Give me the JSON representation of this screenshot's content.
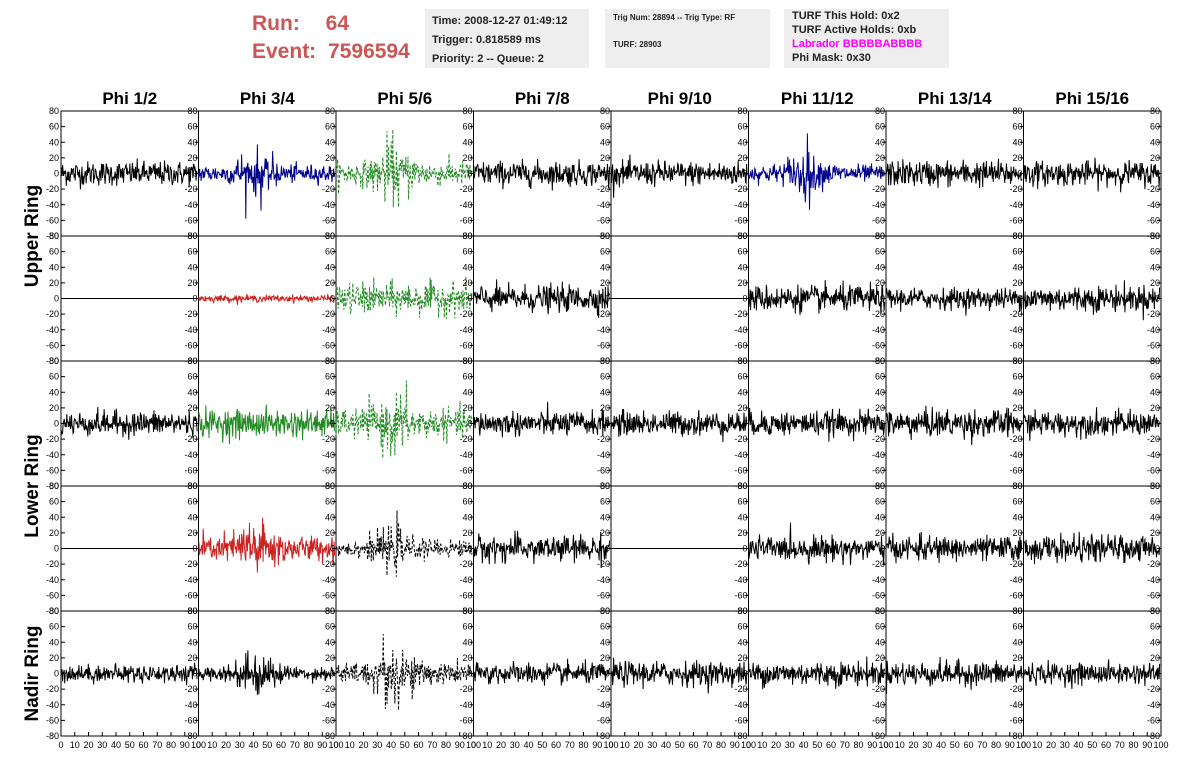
{
  "run_info": {
    "run_label": "Run:",
    "run_value": "64",
    "event_label": "Event:",
    "event_value": "7596594",
    "color": "#cc5555"
  },
  "time_box": {
    "time": "Time: 2008-12-27 01:49:12",
    "trigger": "Trigger: 0.818589 ms",
    "priority": "Priority: 2 -- Queue: 2"
  },
  "trig_box": {
    "trig": "Trig Num: 28894 -- Trig Type: RF",
    "turf": "TURF: 28903"
  },
  "turf_box": {
    "this_hold": "TURF This Hold: 0x2",
    "active_holds": "TURF Active Holds: 0xb",
    "labrador": "Labrador BBBBBABBBB",
    "phi_mask": "Phi Mask: 0x30"
  },
  "chart_data": {
    "type": "line",
    "columns": [
      "Phi 1/2",
      "Phi 3/4",
      "Phi 5/6",
      "Phi 7/8",
      "Phi 9/10",
      "Phi 11/12",
      "Phi 13/14",
      "Phi 15/16"
    ],
    "rings": [
      {
        "label": "Upper Ring",
        "rows": [
          0,
          1
        ]
      },
      {
        "label": "Lower Ring",
        "rows": [
          2,
          3
        ]
      },
      {
        "label": "Nadir Ring",
        "rows": [
          4
        ]
      }
    ],
    "ylim": [
      -80,
      80
    ],
    "xlim": [
      0,
      100
    ],
    "y_ticks": [
      -80,
      -60,
      -40,
      -20,
      0,
      20,
      40,
      60,
      80
    ],
    "y_tick_labels": [
      "-80",
      "-60",
      "-40",
      "-20",
      "0",
      "20",
      "40",
      "60",
      "80"
    ],
    "x_ticks": [
      0,
      10,
      20,
      30,
      40,
      50,
      60,
      70,
      80,
      90,
      100
    ],
    "x_tick_labels": [
      "0",
      "10",
      "20",
      "30",
      "40",
      "50",
      "60",
      "70",
      "80",
      "90",
      "100"
    ],
    "panels": [
      [
        {
          "color": "#000000",
          "style": "solid",
          "amp": 14,
          "burst": 0
        },
        {
          "color": "#00008b",
          "style": "solid",
          "amp": 10,
          "burst": 30
        },
        {
          "color": "#228b22",
          "style": "dashed",
          "amp": 14,
          "burst": 32
        },
        {
          "color": "#000000",
          "style": "solid",
          "amp": 14,
          "burst": 0
        },
        {
          "color": "#000000",
          "style": "solid",
          "amp": 14,
          "burst": 0
        },
        {
          "color": "#00008b",
          "style": "solid",
          "amp": 10,
          "burst": 30
        },
        {
          "color": "#000000",
          "style": "solid",
          "amp": 15,
          "burst": 0
        },
        {
          "color": "#000000",
          "style": "solid",
          "amp": 14,
          "burst": 0
        }
      ],
      [
        {
          "color": "#000000",
          "style": "flat",
          "amp": 0,
          "burst": 0
        },
        {
          "color": "#cc2222",
          "style": "solid",
          "amp": 4,
          "burst": 0
        },
        {
          "color": "#228b22",
          "style": "dashed",
          "amp": 18,
          "burst": 0
        },
        {
          "color": "#000000",
          "style": "solid",
          "amp": 15,
          "burst": 0
        },
        {
          "color": "#000000",
          "style": "flat",
          "amp": 0,
          "burst": 0
        },
        {
          "color": "#000000",
          "style": "solid",
          "amp": 15,
          "burst": 0
        },
        {
          "color": "#000000",
          "style": "solid",
          "amp": 12,
          "burst": 0
        },
        {
          "color": "#000000",
          "style": "solid",
          "amp": 15,
          "burst": 0
        }
      ],
      [
        {
          "color": "#000000",
          "style": "solid",
          "amp": 14,
          "burst": 0
        },
        {
          "color": "#228b22",
          "style": "solid",
          "amp": 16,
          "burst": 0
        },
        {
          "color": "#228b22",
          "style": "dashed",
          "amp": 16,
          "burst": 30
        },
        {
          "color": "#000000",
          "style": "solid",
          "amp": 14,
          "burst": 0
        },
        {
          "color": "#000000",
          "style": "solid",
          "amp": 14,
          "burst": 0
        },
        {
          "color": "#000000",
          "style": "solid",
          "amp": 14,
          "burst": 0
        },
        {
          "color": "#000000",
          "style": "solid",
          "amp": 16,
          "burst": 0
        },
        {
          "color": "#000000",
          "style": "solid",
          "amp": 14,
          "burst": 0
        }
      ],
      [
        {
          "color": "#000000",
          "style": "flat",
          "amp": 0,
          "burst": 0
        },
        {
          "color": "#cc2222",
          "style": "solid",
          "amp": 14,
          "burst": 38
        },
        {
          "color": "#000000",
          "style": "dashed",
          "amp": 10,
          "burst": 22
        },
        {
          "color": "#000000",
          "style": "solid",
          "amp": 15,
          "burst": 0
        },
        {
          "color": "#000000",
          "style": "flat",
          "amp": 0,
          "burst": 0
        },
        {
          "color": "#000000",
          "style": "solid",
          "amp": 14,
          "burst": 0
        },
        {
          "color": "#000000",
          "style": "solid",
          "amp": 14,
          "burst": 0
        },
        {
          "color": "#000000",
          "style": "solid",
          "amp": 15,
          "burst": 0
        }
      ],
      [
        {
          "color": "#000000",
          "style": "solid",
          "amp": 10,
          "burst": 0
        },
        {
          "color": "#000000",
          "style": "solid",
          "amp": 8,
          "burst": 30
        },
        {
          "color": "#000000",
          "style": "dashed",
          "amp": 12,
          "burst": 40
        },
        {
          "color": "#000000",
          "style": "solid",
          "amp": 12,
          "burst": 0
        },
        {
          "color": "#000000",
          "style": "solid",
          "amp": 14,
          "burst": 0
        },
        {
          "color": "#000000",
          "style": "solid",
          "amp": 14,
          "burst": 0
        },
        {
          "color": "#000000",
          "style": "solid",
          "amp": 14,
          "burst": 0
        },
        {
          "color": "#000000",
          "style": "solid",
          "amp": 12,
          "burst": 0
        }
      ]
    ]
  }
}
